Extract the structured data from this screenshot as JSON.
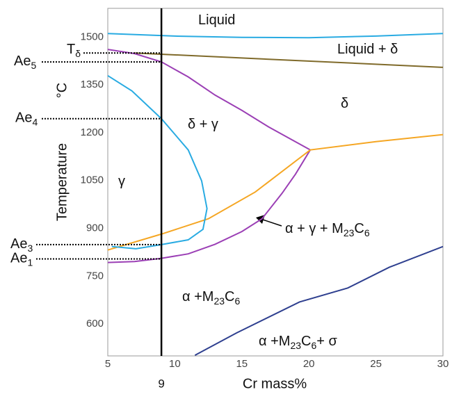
{
  "chart_data": {
    "type": "line",
    "xlabel": "Cr mass%",
    "ylabel": "Temperature",
    "yunit": "°C",
    "xlim": [
      5,
      30
    ],
    "ylim": [
      500,
      1590
    ],
    "xticks": [
      5,
      10,
      15,
      20,
      25,
      30
    ],
    "yticks": [
      600,
      750,
      900,
      1050,
      1200,
      1350,
      1500
    ],
    "marker_x": 9,
    "series": [
      {
        "color": "#29abe2",
        "x": [
          5,
          10,
          15,
          20,
          25,
          30
        ],
        "values": [
          1511,
          1503,
          1499,
          1498,
          1503,
          1511
        ]
      },
      {
        "color": "#7f6a2a",
        "x": [
          7,
          30
        ],
        "values": [
          1450,
          1405
        ]
      },
      {
        "color": "#9b3fb5",
        "x": [
          5,
          7,
          9,
          11,
          13,
          15,
          17,
          20.1
        ],
        "values": [
          1461,
          1448,
          1422,
          1375,
          1318,
          1270,
          1218,
          1146
        ]
      },
      {
        "color": "#9b3fb5",
        "x": [
          5,
          7,
          9,
          11,
          13,
          15,
          16.5,
          18,
          19,
          20.1
        ],
        "values": [
          793,
          796,
          806,
          820,
          850,
          890,
          930,
          1010,
          1070,
          1146
        ]
      },
      {
        "color": "#f5a623",
        "x": [
          5,
          9,
          12.5,
          16,
          20.1,
          25,
          30
        ],
        "values": [
          832,
          882,
          930,
          1014,
          1146,
          1172,
          1194
        ]
      },
      {
        "color": "#29abe2",
        "x": [
          5,
          6.8,
          9,
          11,
          12,
          12.4,
          12.1,
          11,
          9,
          7.1,
          5.3
        ],
        "values": [
          1379,
          1331,
          1244,
          1146,
          1049,
          962,
          897,
          864,
          849,
          836,
          843
        ]
      },
      {
        "color": "#2e3f8f",
        "x": [
          11.5,
          14.6,
          19.3,
          22.9,
          26,
          30
        ],
        "values": [
          502,
          572,
          669,
          713,
          778,
          843
        ]
      }
    ],
    "levels": [
      {
        "parts": [
          "T",
          "δ"
        ],
        "value": 1450
      },
      {
        "parts": [
          "Ae",
          "5"
        ],
        "value": 1422
      },
      {
        "parts": [
          "Ae",
          "4"
        ],
        "value": 1244
      },
      {
        "parts": [
          "Ae",
          "3"
        ],
        "value": 849
      },
      {
        "parts": [
          "Ae",
          "1"
        ],
        "value": 804
      }
    ],
    "annotations": [
      {
        "parts": [
          "Liquid"
        ]
      },
      {
        "parts": [
          "Liquid + δ"
        ]
      },
      {
        "parts": [
          "δ"
        ]
      },
      {
        "parts": [
          "δ + γ"
        ]
      },
      {
        "parts": [
          "γ"
        ]
      },
      {
        "parts": [
          "α + γ + M",
          "23",
          "C",
          "6"
        ]
      },
      {
        "parts": [
          "α +M",
          "23",
          "C",
          "6"
        ]
      },
      {
        "parts": [
          "α +M",
          "23",
          "C",
          "6",
          "+ σ"
        ]
      }
    ]
  }
}
